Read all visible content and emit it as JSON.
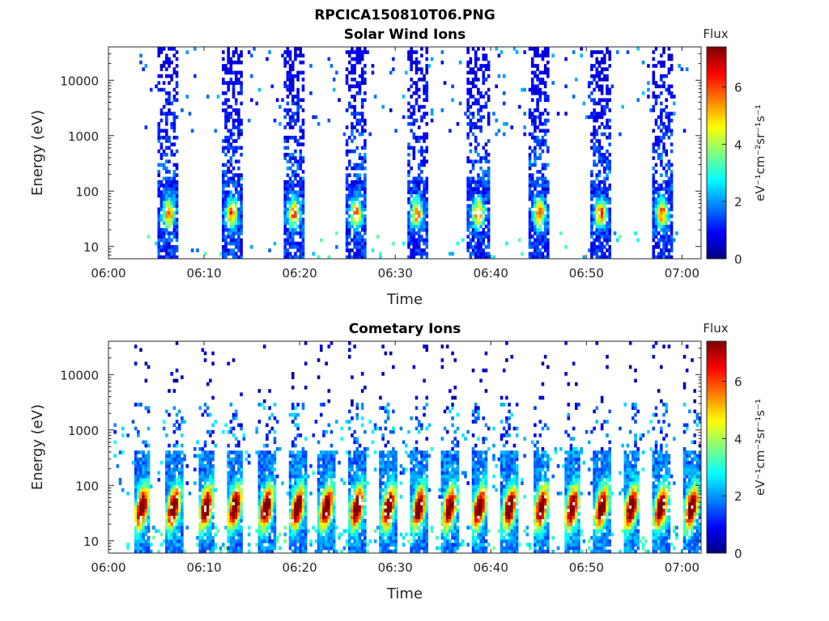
{
  "figure": {
    "title": "RPCICA150810T06.PNG"
  },
  "colorbar": {
    "title": "Flux",
    "unit_label": "eV⁻¹cm⁻²sr⁻¹s⁻¹",
    "ticks": [
      "0",
      "2",
      "4",
      "6"
    ],
    "range": [
      0,
      7.4
    ],
    "colormap": "jet"
  },
  "chart_data": [
    {
      "type": "heatmap",
      "title": "Solar Wind Ions",
      "xlabel": "Time",
      "ylabel": "Energy (eV)",
      "x_ticks": [
        "06:00",
        "06:10",
        "06:20",
        "06:30",
        "06:40",
        "06:50",
        "07:00"
      ],
      "y_ticks": [
        "10",
        "100",
        "1000",
        "10000"
      ],
      "y_scale": "log",
      "ylim": [
        6,
        40000
      ],
      "xlim_minutes": [
        0,
        62
      ],
      "grid": false,
      "sweep_centers_min": [
        6.3,
        12.9,
        19.4,
        25.9,
        32.3,
        38.7,
        45.1,
        51.5,
        57.9
      ],
      "peak_energy_ev": 40,
      "peak_flux": 4.8,
      "background_flux": 0.3
    },
    {
      "type": "heatmap",
      "title": "Cometary Ions",
      "xlabel": "Time",
      "ylabel": "Energy (eV)",
      "x_ticks": [
        "06:00",
        "06:10",
        "06:20",
        "06:30",
        "06:40",
        "06:50",
        "07:00"
      ],
      "y_ticks": [
        "10",
        "100",
        "1000",
        "10000"
      ],
      "y_scale": "log",
      "ylim": [
        6,
        40000
      ],
      "xlim_minutes": [
        0,
        62
      ],
      "grid": false,
      "burst_centers_min": [
        3.5,
        6.8,
        10.2,
        13.2,
        16.5,
        19.8,
        22.8,
        26.0,
        29.3,
        32.5,
        35.7,
        38.8,
        42.0,
        45.3,
        48.5,
        51.6,
        54.7,
        57.8,
        61.0
      ],
      "peak_energy_ev": 40,
      "peak_flux": 7.0,
      "background_flux": 0.5
    }
  ]
}
